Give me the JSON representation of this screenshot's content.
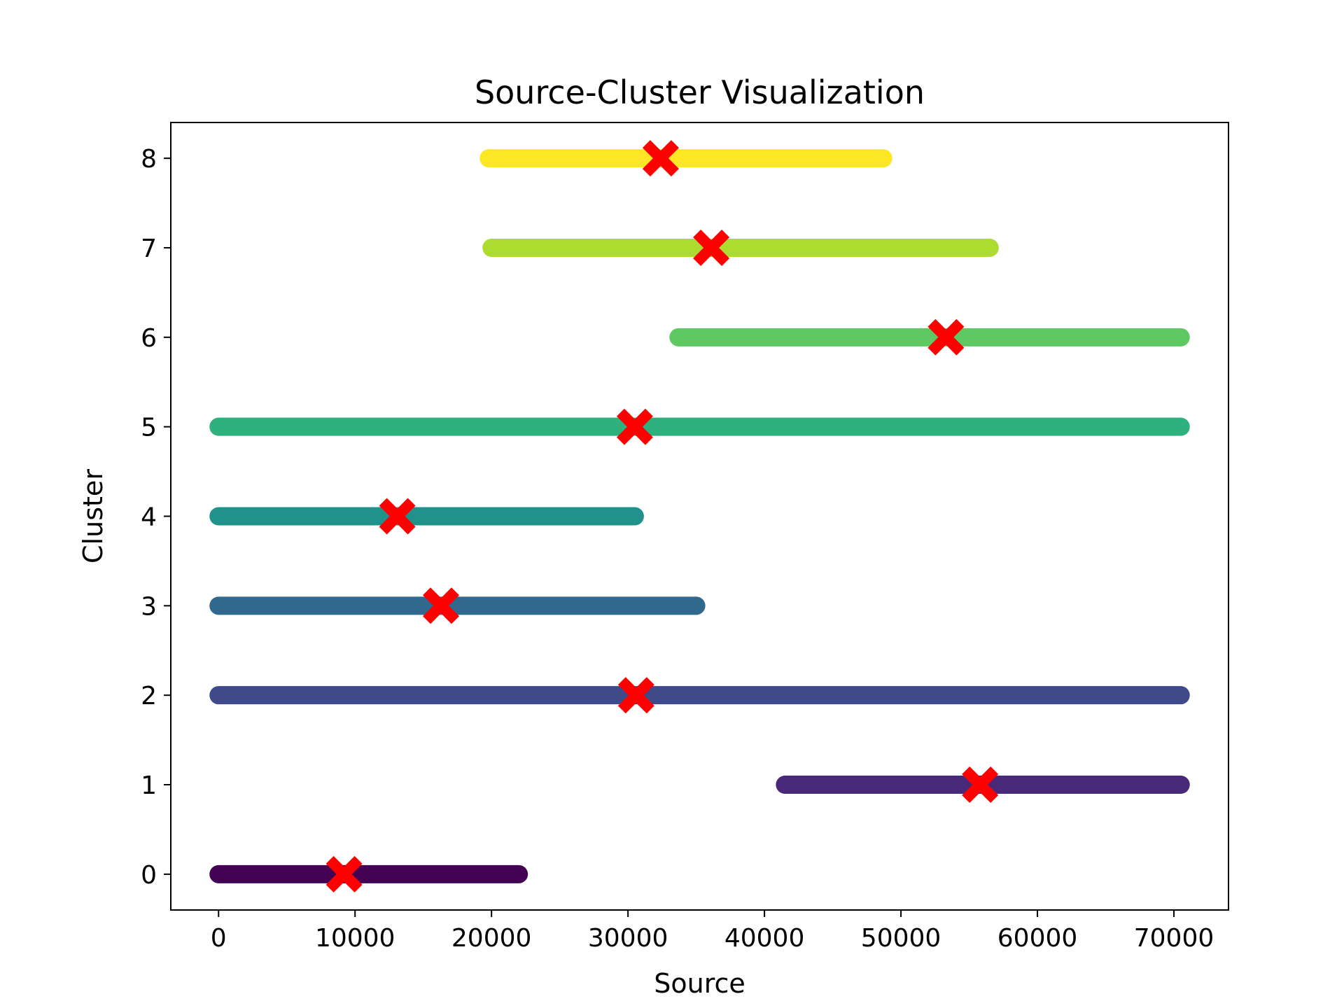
{
  "chart_data": {
    "type": "scatter",
    "title": "Source-Cluster Visualization",
    "xlabel": "Source",
    "ylabel": "Cluster",
    "xlim": [
      -3500,
      74000
    ],
    "ylim": [
      -0.4,
      8.4
    ],
    "xticks": [
      0,
      10000,
      20000,
      30000,
      40000,
      50000,
      60000,
      70000
    ],
    "xtick_labels": [
      "0",
      "10000",
      "20000",
      "30000",
      "40000",
      "50000",
      "60000",
      "70000"
    ],
    "yticks": [
      0,
      1,
      2,
      3,
      4,
      5,
      6,
      7,
      8
    ],
    "ytick_labels": [
      "0",
      "1",
      "2",
      "3",
      "4",
      "5",
      "6",
      "7",
      "8"
    ],
    "grid": false,
    "legend": "none",
    "centroid_color": "#ff0000",
    "clusters": [
      {
        "cluster": 0,
        "x_min": 0,
        "x_max": 22000,
        "centroid": 9200,
        "color": "#440154"
      },
      {
        "cluster": 1,
        "x_min": 41500,
        "x_max": 70500,
        "centroid": 55800,
        "color": "#482878"
      },
      {
        "cluster": 2,
        "x_min": 0,
        "x_max": 70500,
        "centroid": 30600,
        "color": "#3e4a89"
      },
      {
        "cluster": 3,
        "x_min": 0,
        "x_max": 35000,
        "centroid": 16300,
        "color": "#31688e"
      },
      {
        "cluster": 4,
        "x_min": 0,
        "x_max": 30500,
        "centroid": 13100,
        "color": "#21918c"
      },
      {
        "cluster": 5,
        "x_min": 0,
        "x_max": 70500,
        "centroid": 30500,
        "color": "#2db27d"
      },
      {
        "cluster": 6,
        "x_min": 33700,
        "x_max": 70500,
        "centroid": 53300,
        "color": "#5ec962"
      },
      {
        "cluster": 7,
        "x_min": 20000,
        "x_max": 56500,
        "centroid": 36100,
        "color": "#addc30"
      },
      {
        "cluster": 8,
        "x_min": 19800,
        "x_max": 48700,
        "centroid": 32400,
        "color": "#fde725"
      }
    ]
  }
}
